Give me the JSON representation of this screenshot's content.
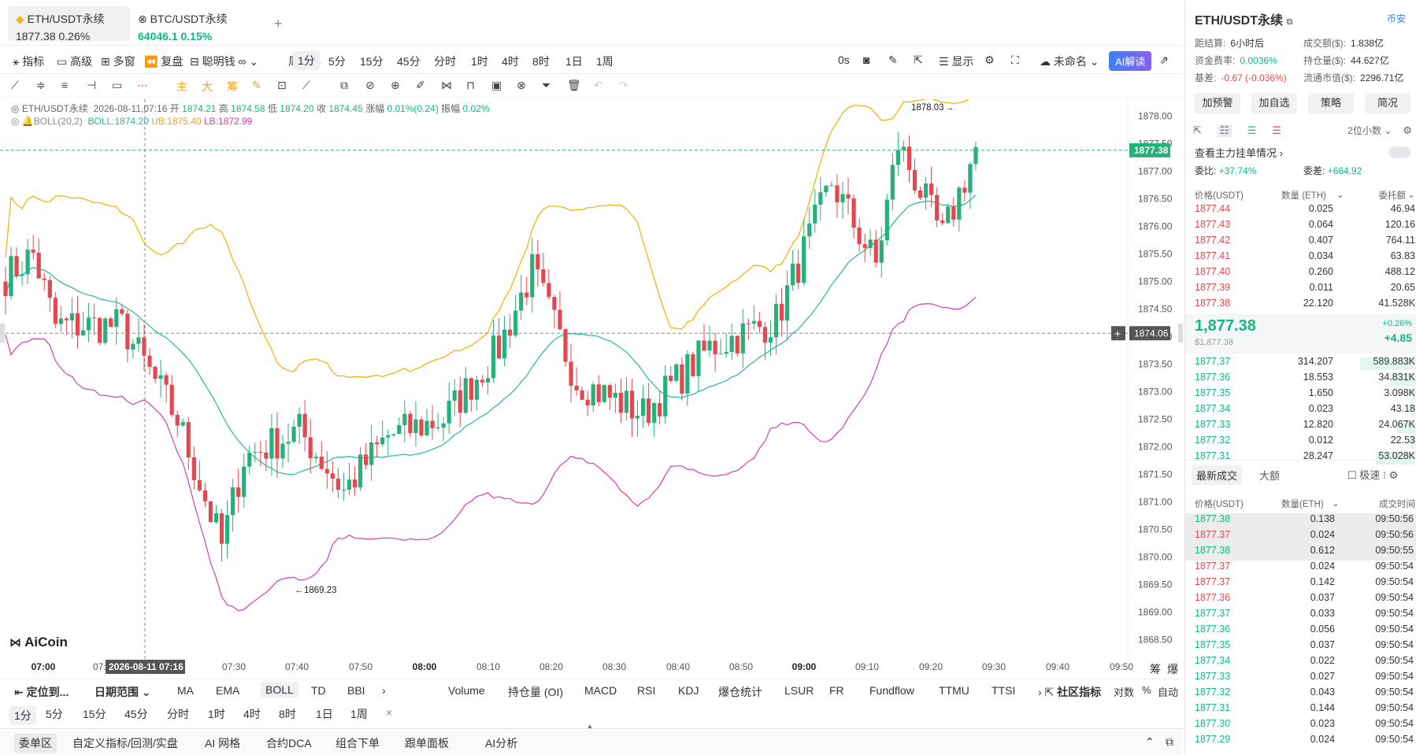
{
  "tabs": [
    {
      "name": "ETH/USDT永续",
      "price": "1877.38",
      "change": "0.26%"
    },
    {
      "name": "BTC/USDT永续",
      "price": "64046.1",
      "change": "0.15%"
    }
  ],
  "toolbar": {
    "indicators": "指标",
    "advanced": "高级",
    "multi": "多窗",
    "replay": "复盘",
    "smart": "聪明钱",
    "period": "周期",
    "intervals": [
      "1分",
      "5分",
      "15分",
      "45分",
      "分时",
      "1时",
      "4时",
      "8时",
      "1日",
      "1周"
    ],
    "selected_interval": "1分",
    "countdown": "0s",
    "display": "显示",
    "unnamed": "未命名",
    "ai": "AI解读"
  },
  "info": {
    "symbol": "ETH/USDT永续",
    "datetime": "2026-08-11,07:16",
    "open_l": "开",
    "open": "1874.21",
    "high_l": "高",
    "high": "1874.58",
    "low_l": "低",
    "low": "1874.20",
    "close_l": "收",
    "close": "1874.45",
    "chg_l": "涨幅",
    "chg": "0.01%(0.24)",
    "amp_l": "振幅",
    "amp": "0.02%"
  },
  "boll": {
    "label": "BOLL(20,2)",
    "mid": "BOLL:1874.20",
    "ub": "UB:1875.40",
    "lb": "LB:1872.99"
  },
  "chart_data": {
    "type": "candlestick",
    "ylim": [
      1868.25,
      1878.25
    ],
    "y_ticks": [
      "1878.00",
      "1877.50",
      "1877.00",
      "1876.50",
      "1876.00",
      "1875.50",
      "1875.00",
      "1874.50",
      "1874.00",
      "1873.50",
      "1873.00",
      "1872.50",
      "1872.00",
      "1871.50",
      "1871.00",
      "1870.50",
      "1870.00",
      "1869.50",
      "1869.00",
      "1868.50"
    ],
    "x_ticks": [
      "07:00",
      "07:20",
      "07:30",
      "07:40",
      "07:50",
      "08:00",
      "08:10",
      "08:20",
      "08:30",
      "08:40",
      "08:50",
      "09:00",
      "09:10",
      "09:20",
      "09:30",
      "09:40",
      "09:50"
    ],
    "current_price": "1877.38",
    "crosshair_price": "1874.06",
    "crosshair_time": "2026-08-11 07:16",
    "high_mark": "1878.03",
    "low_mark": "1869.23"
  },
  "logo": "AiCoin",
  "axis_extra": {
    "a": "筹",
    "b": "爆"
  },
  "indicator_bar": {
    "locate": "定位到...",
    "date_range": "日期范围",
    "main": [
      "MA",
      "EMA",
      "BOLL",
      "TD",
      "BBI"
    ],
    "main_selected": "BOLL",
    "sub": [
      "Volume",
      "持仓量 (OI)",
      "MACD",
      "RSI",
      "KDJ",
      "爆仓统计",
      "LSUR",
      "FR",
      "Fundflow",
      "TTMU",
      "TTSI"
    ],
    "community": "社区指标",
    "log": "对数",
    "pct": "%",
    "auto": "自动"
  },
  "interval_bar": [
    "1分",
    "5分",
    "15分",
    "45分",
    "分时",
    "1时",
    "4时",
    "8时",
    "1日",
    "1周"
  ],
  "bottom_tabs": [
    "委单区",
    "自定义指标/回测/实盘",
    "AI 网格",
    "合约DCA",
    "组合下单",
    "跟单面板",
    "AI分析"
  ],
  "right": {
    "title": "ETH/USDT永续",
    "exchange": "币安",
    "stats": [
      {
        "l": "距结算:",
        "v": "6小时后"
      },
      {
        "l": "成交额($):",
        "v": "1.838亿"
      },
      {
        "l": "资金费率:",
        "v": "0.0036%"
      },
      {
        "l": "持仓量($):",
        "v": "44.627亿"
      },
      {
        "l": "基差:",
        "v": "-0.67 (-0.036%)"
      },
      {
        "l": "流通市值($):",
        "v": "2296.71亿"
      }
    ],
    "buttons": [
      "加预警",
      "加自选",
      "策略",
      "简况"
    ],
    "decimals": "2位小数",
    "main_orders": "查看主力挂单情况",
    "ratio_l": "委比:",
    "ratio": "+37.74%",
    "diff_l": "委差:",
    "diff": "+664.92",
    "ob_headers": [
      "价格(USDT)",
      "数量 (ETH)",
      "委托额"
    ],
    "asks": [
      [
        "1877.44",
        "0.025",
        "46.94"
      ],
      [
        "1877.43",
        "0.064",
        "120.16"
      ],
      [
        "1877.42",
        "0.407",
        "764.11"
      ],
      [
        "1877.41",
        "0.034",
        "63.83"
      ],
      [
        "1877.40",
        "0.260",
        "488.12"
      ],
      [
        "1877.39",
        "0.011",
        "20.65"
      ],
      [
        "1877.38",
        "22.120",
        "41.528K"
      ]
    ],
    "last": "1,877.38",
    "last_usd": "$1,877.38",
    "last_pct": "+0.26%",
    "last_chg": "+4.85",
    "bids": [
      [
        "1877.37",
        "314.207",
        "589.883K"
      ],
      [
        "1877.36",
        "18.553",
        "34.831K"
      ],
      [
        "1877.35",
        "1.650",
        "3.098K"
      ],
      [
        "1877.34",
        "0.023",
        "43.18"
      ],
      [
        "1877.33",
        "12.820",
        "24.067K"
      ],
      [
        "1877.32",
        "0.012",
        "22.53"
      ],
      [
        "1877.31",
        "28.247",
        "53.028K"
      ]
    ],
    "trade_tabs": [
      "最新成交",
      "大额"
    ],
    "fast": "极速",
    "trade_headers": [
      "价格(USDT)",
      "数量(ETH)",
      "成交时间"
    ],
    "trades": [
      [
        "1877.38",
        "0.138",
        "09:50:56",
        "g"
      ],
      [
        "1877.37",
        "0.024",
        "09:50:56",
        "r"
      ],
      [
        "1877.38",
        "0.612",
        "09:50:55",
        "g"
      ],
      [
        "1877.37",
        "0.024",
        "09:50:54",
        "r"
      ],
      [
        "1877.37",
        "0.142",
        "09:50:54",
        "r"
      ],
      [
        "1877.36",
        "0.037",
        "09:50:54",
        "r"
      ],
      [
        "1877.37",
        "0.033",
        "09:50:54",
        "g"
      ],
      [
        "1877.36",
        "0.056",
        "09:50:54",
        "g"
      ],
      [
        "1877.35",
        "0.037",
        "09:50:54",
        "g"
      ],
      [
        "1877.34",
        "0.022",
        "09:50:54",
        "g"
      ],
      [
        "1877.33",
        "0.027",
        "09:50:54",
        "g"
      ],
      [
        "1877.32",
        "0.043",
        "09:50:54",
        "g"
      ],
      [
        "1877.31",
        "0.144",
        "09:50:54",
        "g"
      ],
      [
        "1877.30",
        "0.023",
        "09:50:54",
        "g"
      ],
      [
        "1877.29",
        "0.024",
        "09:50:54",
        "g"
      ]
    ]
  }
}
